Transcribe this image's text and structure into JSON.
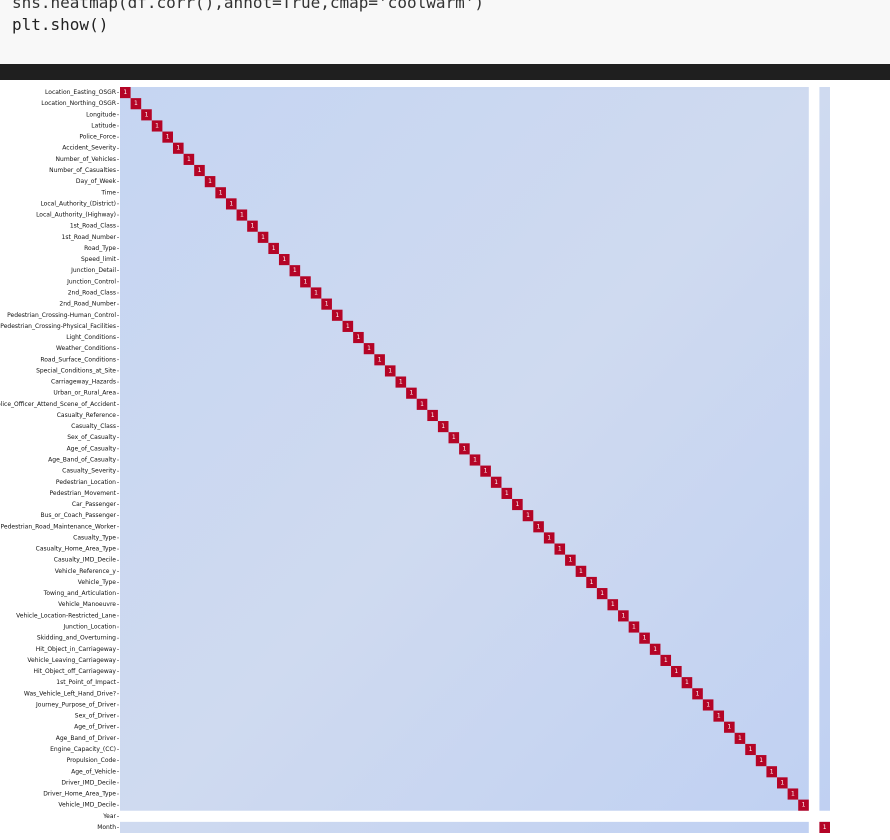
{
  "code": {
    "lines": [
      "sns.heatmap(df.corr(),annot=True,cmap='coolwarm')",
      "plt.show()"
    ]
  },
  "heatmap": {
    "diagonal": 1,
    "labels": [
      "Location_Easting_OSGR",
      "Location_Northing_OSGR",
      "Longitude",
      "Latitude",
      "Police_Force",
      "Accident_Severity",
      "Number_of_Vehicles",
      "Number_of_Casualties",
      "Day_of_Week",
      "Time",
      "Local_Authority_(District)",
      "Local_Authority_(Highway)",
      "1st_Road_Class",
      "1st_Road_Number",
      "Road_Type",
      "Speed_limit",
      "Junction_Detail",
      "Junction_Control",
      "2nd_Road_Class",
      "2nd_Road_Number",
      "Pedestrian_Crossing-Human_Control",
      "Pedestrian_Crossing-Physical_Facilities",
      "Light_Conditions",
      "Weather_Conditions",
      "Road_Surface_Conditions",
      "Special_Conditions_at_Site",
      "Carriageway_Hazards",
      "Urban_or_Rural_Area",
      "Did_Police_Officer_Attend_Scene_of_Accident",
      "Casualty_Reference",
      "Casualty_Class",
      "Sex_of_Casualty",
      "Age_of_Casualty",
      "Age_Band_of_Casualty",
      "Casualty_Severity",
      "Pedestrian_Location",
      "Pedestrian_Movement",
      "Car_Passenger",
      "Bus_or_Coach_Passenger",
      "Pedestrian_Road_Maintenance_Worker",
      "Casualty_Type",
      "Casualty_Home_Area_Type",
      "Casualty_IMD_Decile",
      "Vehicle_Reference_y",
      "Vehicle_Type",
      "Towing_and_Articulation",
      "Vehicle_Manoeuvre",
      "Vehicle_Location-Restricted_Lane",
      "Junction_Location",
      "Skidding_and_Overturning",
      "Hit_Object_in_Carriageway",
      "Vehicle_Leaving_Carriageway",
      "Hit_Object_off_Carriageway",
      "1st_Point_of_Impact",
      "Was_Vehicle_Left_Hand_Drive?",
      "Journey_Purpose_of_Driver",
      "Sex_of_Driver",
      "Age_of_Driver",
      "Age_Band_of_Driver",
      "Engine_Capacity_(CC)",
      "Propulsion_Code",
      "Age_of_Vehicle",
      "Driver_IMD_Decile",
      "Driver_Home_Area_Type",
      "Vehicle_IMD_Decile",
      "Year",
      "Month"
    ]
  }
}
